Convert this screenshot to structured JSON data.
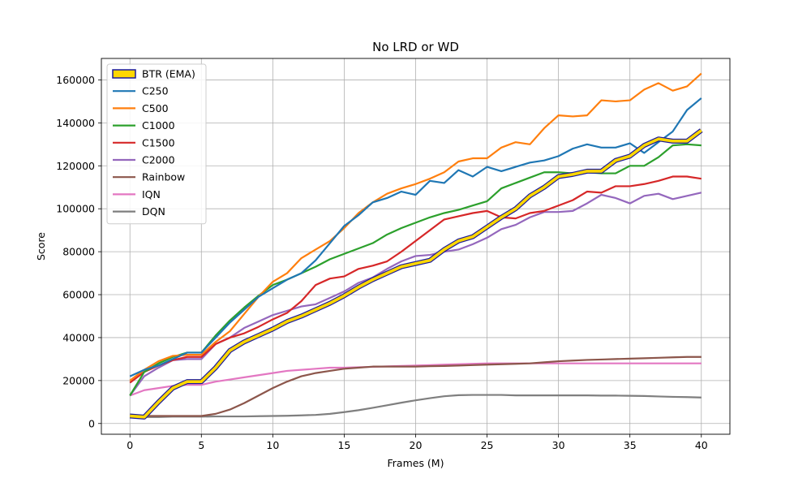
{
  "chart_data": {
    "type": "line",
    "title": "No LRD or WD",
    "xlabel": "Frames (M)",
    "ylabel": "Score",
    "xlim": [
      -2,
      42
    ],
    "ylim": [
      -5000,
      170000
    ],
    "xticks": [
      0,
      5,
      10,
      15,
      20,
      25,
      30,
      35,
      40
    ],
    "yticks": [
      0,
      20000,
      40000,
      60000,
      80000,
      100000,
      120000,
      140000,
      160000
    ],
    "grid": true,
    "legend_position": "top-left",
    "x": [
      0,
      1,
      2,
      3,
      4,
      5,
      6,
      7,
      8,
      9,
      10,
      11,
      12,
      13,
      14,
      15,
      16,
      17,
      18,
      19,
      20,
      21,
      22,
      23,
      24,
      25,
      26,
      27,
      28,
      29,
      30,
      31,
      32,
      33,
      34,
      35,
      36,
      37,
      38,
      39,
      40
    ],
    "series": [
      {
        "name": "BTR (EMA)",
        "color": "#ffd700",
        "edge": "#1a1a9c",
        "values": [
          3500,
          3000,
          10000,
          16500,
          19500,
          19500,
          26000,
          34000,
          38000,
          41000,
          44000,
          47500,
          50000,
          53000,
          56000,
          59500,
          63500,
          67000,
          70000,
          73000,
          74500,
          76000,
          81000,
          85000,
          87000,
          91500,
          96000,
          100000,
          106000,
          110000,
          115000,
          116000,
          117500,
          117500,
          122500,
          124500,
          129500,
          132500,
          131500,
          131500,
          136500
        ]
      },
      {
        "name": "C250",
        "color": "#1f77b4",
        "values": [
          22000,
          25000,
          27000,
          30000,
          33000,
          33000,
          40000,
          47000,
          53000,
          59000,
          63000,
          67000,
          70000,
          76000,
          84000,
          92000,
          97000,
          103000,
          105000,
          108000,
          106500,
          113000,
          112000,
          118000,
          115000,
          119500,
          117500,
          119500,
          121500,
          122500,
          124500,
          128000,
          130000,
          128500,
          128500,
          130500,
          126000,
          131000,
          136000,
          146000,
          151500
        ]
      },
      {
        "name": "C500",
        "color": "#ff7f0e",
        "values": [
          20000,
          25000,
          29000,
          31500,
          32000,
          32000,
          38000,
          43000,
          51000,
          59000,
          66000,
          70000,
          77000,
          81000,
          85000,
          91000,
          98000,
          103000,
          107000,
          109500,
          111500,
          114000,
          117000,
          122000,
          123500,
          123500,
          128500,
          131000,
          130000,
          137500,
          143500,
          143000,
          143500,
          150500,
          150000,
          150500,
          155500,
          158500,
          155000,
          157000,
          163000
        ]
      },
      {
        "name": "C1000",
        "color": "#2ca02c",
        "values": [
          13000,
          24000,
          28000,
          31000,
          33000,
          33000,
          41000,
          48000,
          54000,
          59500,
          64500,
          67000,
          70000,
          73000,
          76500,
          79000,
          81500,
          84000,
          88000,
          91000,
          93500,
          96000,
          98000,
          99500,
          101500,
          103500,
          109500,
          112000,
          114500,
          117000,
          117000,
          116500,
          117000,
          116500,
          116500,
          120000,
          120000,
          124000,
          129500,
          130000,
          129500
        ]
      },
      {
        "name": "C1500",
        "color": "#d62728",
        "values": [
          19000,
          24000,
          27000,
          29500,
          31000,
          31000,
          37000,
          40000,
          42000,
          45000,
          48500,
          51500,
          57000,
          64500,
          67500,
          68500,
          72000,
          73500,
          75500,
          80000,
          85000,
          90000,
          95000,
          96500,
          98000,
          99000,
          96000,
          95500,
          98000,
          99000,
          101500,
          104000,
          108000,
          107500,
          110500,
          110500,
          111500,
          113000,
          115000,
          115000,
          114000
        ]
      },
      {
        "name": "C2000",
        "color": "#9467bd",
        "values": [
          13000,
          22000,
          26000,
          29500,
          30000,
          30000,
          37000,
          40000,
          44500,
          47500,
          50500,
          52500,
          54500,
          55500,
          58500,
          61500,
          65500,
          68000,
          72000,
          75500,
          78000,
          78500,
          80000,
          81000,
          83500,
          86500,
          90500,
          92500,
          96000,
          98500,
          98500,
          99000,
          102500,
          106500,
          105000,
          102500,
          106000,
          107000,
          104500,
          106000,
          107500
        ]
      },
      {
        "name": "Rainbow",
        "color": "#8c564b",
        "values": [
          3500,
          3500,
          3500,
          3500,
          3500,
          3500,
          4500,
          6500,
          9500,
          13000,
          16500,
          19500,
          22000,
          23500,
          24500,
          25500,
          26000,
          26500,
          26500,
          26500,
          26500,
          26700,
          26800,
          27000,
          27200,
          27400,
          27600,
          27800,
          28000,
          28500,
          29000,
          29300,
          29600,
          29800,
          30000,
          30200,
          30400,
          30600,
          30800,
          31000,
          31000
        ]
      },
      {
        "name": "IQN",
        "color": "#e377c2",
        "values": [
          13000,
          15500,
          16500,
          17500,
          18000,
          18000,
          19500,
          20500,
          21500,
          22500,
          23500,
          24500,
          25000,
          25500,
          26000,
          26000,
          26200,
          26400,
          26600,
          26800,
          27000,
          27200,
          27400,
          27600,
          27800,
          28000,
          28000,
          28000,
          28000,
          28000,
          28000,
          28000,
          28000,
          28000,
          28000,
          28000,
          28000,
          28000,
          28000,
          28000,
          28000
        ]
      },
      {
        "name": "DQN",
        "color": "#7f7f7f",
        "values": [
          3000,
          3000,
          3000,
          3200,
          3200,
          3200,
          3300,
          3300,
          3300,
          3400,
          3500,
          3600,
          3800,
          4000,
          4500,
          5300,
          6200,
          7300,
          8500,
          9700,
          10800,
          11800,
          12700,
          13200,
          13300,
          13300,
          13300,
          13100,
          13100,
          13100,
          13100,
          13100,
          13100,
          13000,
          13000,
          12900,
          12800,
          12600,
          12400,
          12300,
          12100
        ]
      }
    ]
  }
}
